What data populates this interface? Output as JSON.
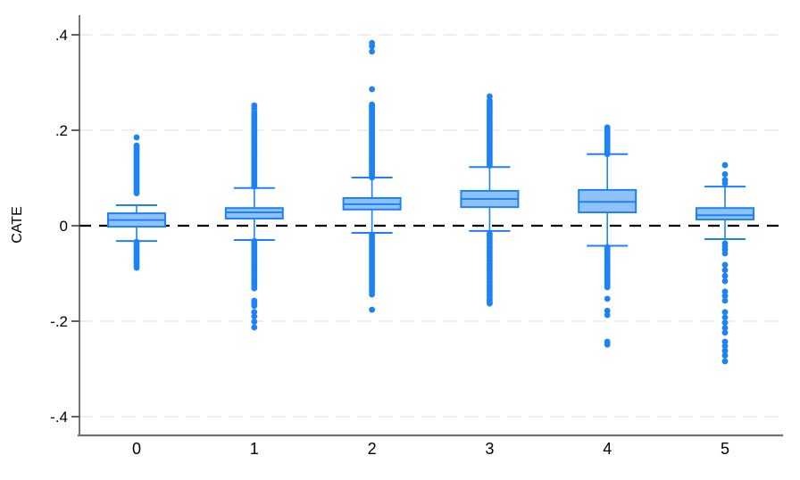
{
  "figure": {
    "ylabel": "CATE"
  },
  "chart_data": {
    "type": "box",
    "title": "",
    "xlabel": "",
    "ylabel": "CATE",
    "categories": [
      "0",
      "1",
      "2",
      "3",
      "4",
      "5"
    ],
    "ylim": [
      -0.45,
      0.44
    ],
    "yticks": [
      -0.4,
      -0.2,
      0,
      0.2,
      0.4
    ],
    "ytick_labels": [
      "-.4",
      "-.2",
      "0",
      ".2",
      ".4"
    ],
    "reference_line": 0,
    "grid": true,
    "legend_position": "none",
    "colors": {
      "marker": "#1e82f7",
      "box_fill": "#8ec1f8",
      "box_stroke": "#1e82f7",
      "zero_line": "#000000",
      "grid_line": "#e9e9e9",
      "y_axis_line": "#3a3a3a",
      "x_axis_line": "#707070",
      "text": "#000000"
    },
    "series": [
      {
        "label": "0",
        "whisker_low": -0.032,
        "q1": -0.002,
        "median": 0.012,
        "q3": 0.026,
        "whisker_high": 0.043,
        "outliers_high": [
          0.185,
          0.168,
          0.164,
          0.16,
          0.156,
          0.152,
          0.148,
          0.144,
          0.14,
          0.136,
          0.132,
          0.128,
          0.124,
          0.12,
          0.116,
          0.112,
          0.108,
          0.104,
          0.1,
          0.096,
          0.092,
          0.088,
          0.084,
          0.08,
          0.076,
          0.072,
          0.068
        ],
        "outliers_low": [
          -0.034,
          -0.039,
          -0.043,
          -0.048,
          -0.052,
          -0.057,
          -0.061,
          -0.066,
          -0.07,
          -0.075,
          -0.079,
          -0.084,
          -0.088
        ]
      },
      {
        "label": "1",
        "whisker_low": -0.03,
        "q1": 0.015,
        "median": 0.028,
        "q3": 0.037,
        "whisker_high": 0.079,
        "outliers_high": [
          0.252,
          0.245,
          0.238,
          0.234,
          0.23,
          0.226,
          0.222,
          0.218,
          0.214,
          0.21,
          0.206,
          0.202,
          0.198,
          0.194,
          0.19,
          0.186,
          0.182,
          0.178,
          0.174,
          0.17,
          0.166,
          0.162,
          0.158,
          0.154,
          0.15,
          0.146,
          0.142,
          0.138,
          0.134,
          0.13,
          0.126,
          0.122,
          0.118,
          0.114,
          0.11,
          0.106,
          0.102,
          0.098,
          0.094,
          0.09,
          0.086,
          0.082
        ],
        "outliers_low": [
          -0.032,
          -0.037,
          -0.041,
          -0.046,
          -0.05,
          -0.055,
          -0.059,
          -0.064,
          -0.068,
          -0.073,
          -0.077,
          -0.082,
          -0.086,
          -0.091,
          -0.095,
          -0.1,
          -0.104,
          -0.109,
          -0.113,
          -0.118,
          -0.122,
          -0.127,
          -0.131,
          -0.157,
          -0.162,
          -0.168,
          -0.181,
          -0.19,
          -0.201,
          -0.213
        ]
      },
      {
        "label": "2",
        "whisker_low": -0.015,
        "q1": 0.034,
        "median": 0.045,
        "q3": 0.058,
        "whisker_high": 0.101,
        "outliers_high": [
          0.383,
          0.376,
          0.365,
          0.286,
          0.254,
          0.251,
          0.248,
          0.245,
          0.242,
          0.239,
          0.236,
          0.233,
          0.23,
          0.227,
          0.224,
          0.221,
          0.218,
          0.215,
          0.212,
          0.209,
          0.206,
          0.203,
          0.2,
          0.197,
          0.194,
          0.191,
          0.188,
          0.185,
          0.182,
          0.179,
          0.176,
          0.173,
          0.17,
          0.167,
          0.164,
          0.161,
          0.158,
          0.155,
          0.152,
          0.149,
          0.146,
          0.143,
          0.14,
          0.137,
          0.134,
          0.131,
          0.128,
          0.125,
          0.122,
          0.119,
          0.116,
          0.113,
          0.11,
          0.107,
          0.104,
          0.101
        ],
        "outliers_low": [
          -0.019,
          -0.023,
          -0.027,
          -0.031,
          -0.035,
          -0.039,
          -0.043,
          -0.047,
          -0.051,
          -0.055,
          -0.059,
          -0.063,
          -0.067,
          -0.071,
          -0.075,
          -0.079,
          -0.083,
          -0.087,
          -0.091,
          -0.095,
          -0.099,
          -0.103,
          -0.107,
          -0.111,
          -0.115,
          -0.119,
          -0.123,
          -0.127,
          -0.131,
          -0.135,
          -0.139,
          -0.144,
          -0.176
        ]
      },
      {
        "label": "3",
        "whisker_low": -0.011,
        "q1": 0.039,
        "median": 0.056,
        "q3": 0.073,
        "whisker_high": 0.123,
        "outliers_high": [
          0.271,
          0.262,
          0.258,
          0.254,
          0.25,
          0.246,
          0.242,
          0.238,
          0.234,
          0.23,
          0.226,
          0.222,
          0.218,
          0.214,
          0.21,
          0.206,
          0.202,
          0.198,
          0.194,
          0.19,
          0.186,
          0.182,
          0.178,
          0.174,
          0.17,
          0.166,
          0.162,
          0.158,
          0.154,
          0.15,
          0.146,
          0.142,
          0.138,
          0.134,
          0.13,
          0.126
        ],
        "outliers_low": [
          -0.017,
          -0.021,
          -0.026,
          -0.03,
          -0.035,
          -0.039,
          -0.044,
          -0.048,
          -0.053,
          -0.057,
          -0.062,
          -0.066,
          -0.071,
          -0.075,
          -0.08,
          -0.084,
          -0.089,
          -0.093,
          -0.098,
          -0.102,
          -0.107,
          -0.111,
          -0.116,
          -0.12,
          -0.125,
          -0.129,
          -0.134,
          -0.138,
          -0.143,
          -0.147,
          -0.152,
          -0.156,
          -0.16,
          -0.163
        ]
      },
      {
        "label": "4",
        "whisker_low": -0.042,
        "q1": 0.028,
        "median": 0.05,
        "q3": 0.075,
        "whisker_high": 0.15,
        "outliers_high": [
          0.206,
          0.202,
          0.199,
          0.196,
          0.192,
          0.189,
          0.185,
          0.182,
          0.178,
          0.175,
          0.171,
          0.168,
          0.164,
          0.161,
          0.157,
          0.154,
          0.15
        ],
        "outliers_low": [
          -0.045,
          -0.049,
          -0.053,
          -0.057,
          -0.061,
          -0.065,
          -0.069,
          -0.073,
          -0.077,
          -0.081,
          -0.085,
          -0.089,
          -0.093,
          -0.097,
          -0.101,
          -0.105,
          -0.109,
          -0.113,
          -0.117,
          -0.121,
          -0.125,
          -0.129,
          -0.153,
          -0.178,
          -0.187,
          -0.243,
          -0.249
        ]
      },
      {
        "label": "5",
        "whisker_low": -0.028,
        "q1": 0.013,
        "median": 0.022,
        "q3": 0.037,
        "whisker_high": 0.082,
        "outliers_high": [
          0.127,
          0.108,
          0.096,
          0.089
        ],
        "outliers_low": [
          -0.037,
          -0.043,
          -0.05,
          -0.058,
          -0.082,
          -0.093,
          -0.105,
          -0.116,
          -0.138,
          -0.147,
          -0.157,
          -0.181,
          -0.192,
          -0.203,
          -0.214,
          -0.224,
          -0.243,
          -0.252,
          -0.262,
          -0.272,
          -0.284
        ]
      }
    ]
  }
}
